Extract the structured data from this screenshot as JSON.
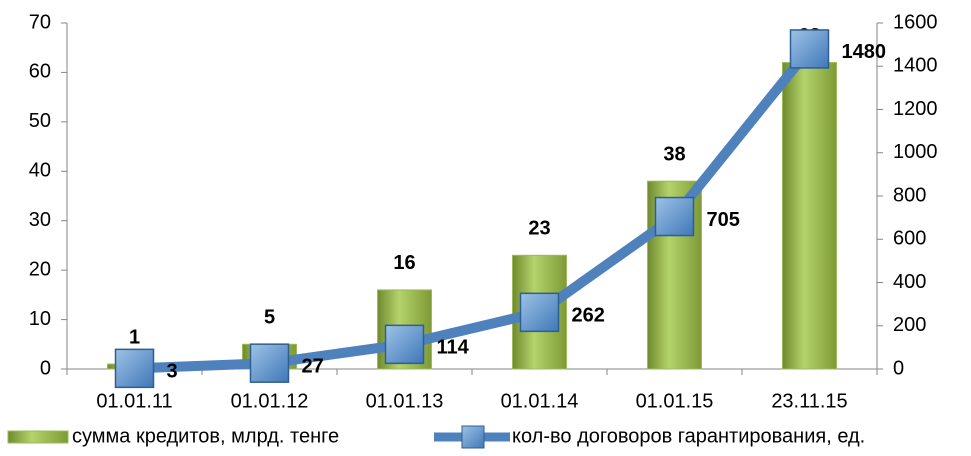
{
  "chart_data": {
    "type": "bar",
    "categories": [
      "01.01.11",
      "01.01.12",
      "01.01.13",
      "01.01.14",
      "01.01.15",
      "23.11.15"
    ],
    "series": [
      {
        "name": "сумма кредитов, млрд. тенге",
        "color": "#9bbb59",
        "values": [
          1,
          5,
          16,
          23,
          38,
          62
        ]
      },
      {
        "name": "кол-во договоров гарантирования, ед.",
        "color": "#4f81bd",
        "type": "line",
        "axis": "y2",
        "values": [
          3,
          27,
          114,
          262,
          705,
          1480
        ]
      }
    ],
    "ylim": [
      0,
      70
    ],
    "yticks": [
      0,
      10,
      20,
      30,
      40,
      50,
      60,
      70
    ],
    "y2lim": [
      0,
      1600
    ],
    "y2ticks": [
      0,
      200,
      400,
      600,
      800,
      1000,
      1200,
      1400,
      1600
    ],
    "legend": "bottom"
  }
}
